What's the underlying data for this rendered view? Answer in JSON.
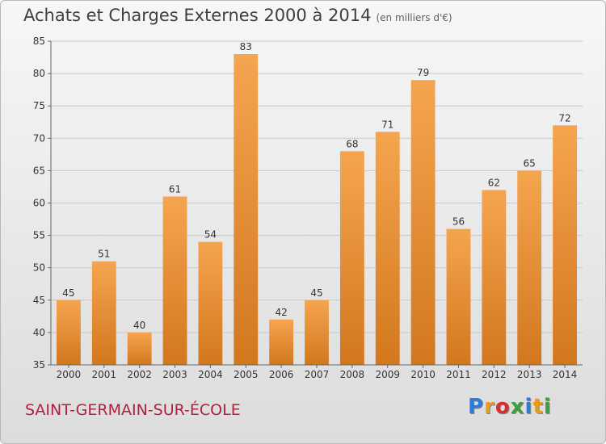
{
  "title": "Achats et Charges Externes 2000 à 2014",
  "subtitle": "(en milliers d'€)",
  "commune": "SAINT-GERMAIN-SUR-ÉCOLE",
  "logo": {
    "letters": [
      "P",
      "r",
      "o",
      "x",
      "i",
      "t",
      "i"
    ],
    "colors": [
      "#2e7bd6",
      "#e89b1c",
      "#d6302e",
      "#3aa23a",
      "#2e7bd6",
      "#e89b1c",
      "#3aa23a"
    ]
  },
  "colors": {
    "bar_light": "#f5a54f",
    "bar_dark": "#d2771e",
    "title": "#404040",
    "commune": "#b22040"
  },
  "chart_data": {
    "type": "bar",
    "categories": [
      "2000",
      "2001",
      "2002",
      "2003",
      "2004",
      "2005",
      "2006",
      "2007",
      "2008",
      "2009",
      "2010",
      "2011",
      "2012",
      "2013",
      "2014"
    ],
    "values": [
      45,
      51,
      40,
      61,
      54,
      83,
      42,
      45,
      68,
      71,
      79,
      56,
      62,
      65,
      72
    ],
    "ylim": [
      35,
      85
    ],
    "yticks": [
      35,
      40,
      45,
      50,
      55,
      60,
      65,
      70,
      75,
      80,
      85
    ],
    "grid": true,
    "data_labels": true
  }
}
